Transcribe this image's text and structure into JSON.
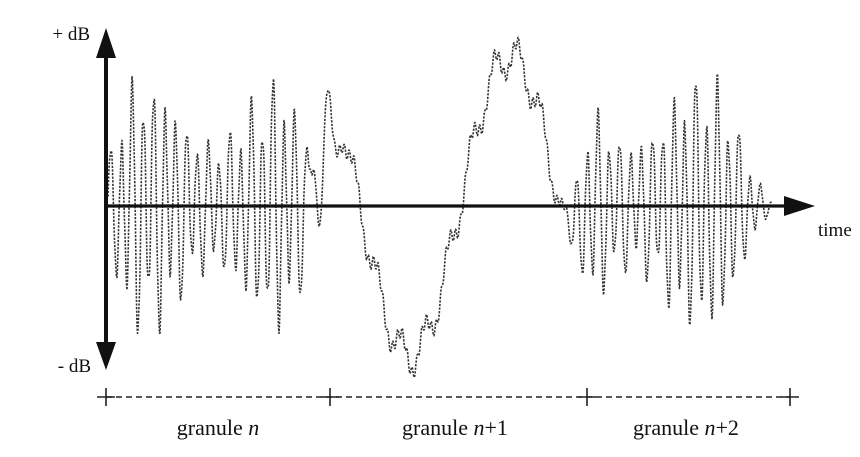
{
  "axes": {
    "y_top_label": "+ dB",
    "y_bottom_label": "- dB",
    "x_label": "time"
  },
  "granules": [
    {
      "label_prefix": "granule ",
      "label_var": "n",
      "label_suffix": ""
    },
    {
      "label_prefix": "granule ",
      "label_var": "n",
      "label_suffix": "+1"
    },
    {
      "label_prefix": "granule ",
      "label_var": "n",
      "label_suffix": "+2"
    }
  ],
  "colors": {
    "axis": "#111111",
    "waveform": "#333333",
    "divider": "#222222"
  }
}
